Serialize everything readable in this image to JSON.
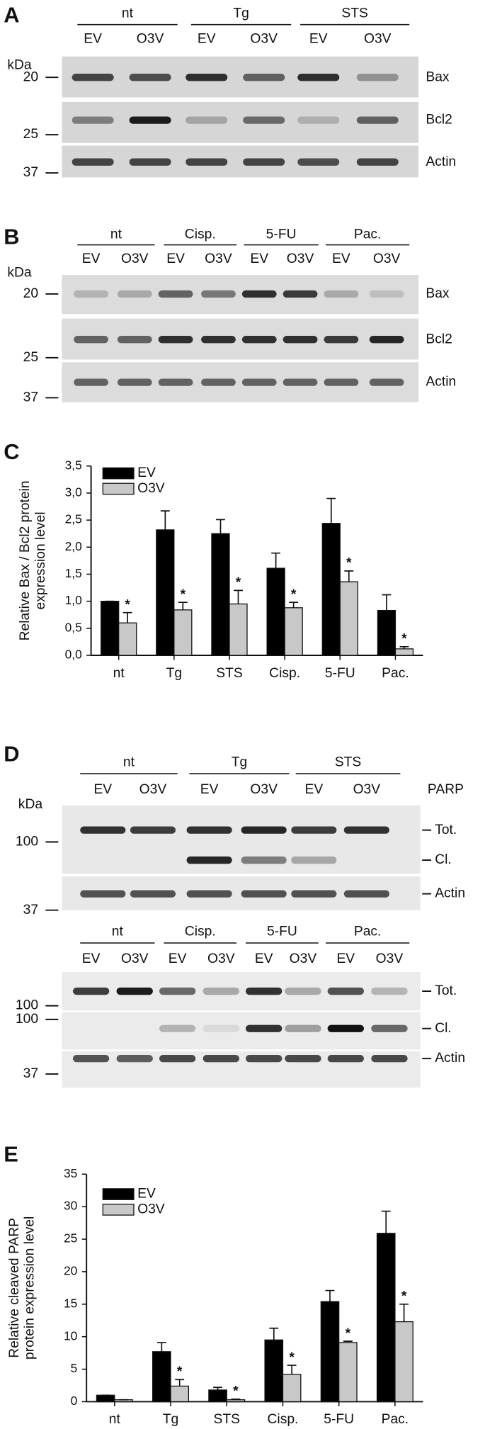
{
  "blots": [
    {
      "panel": "A",
      "groups": [
        {
          "label": "nt",
          "lanes": [
            "EV",
            "O3V"
          ]
        },
        {
          "label": "Tg",
          "lanes": [
            "EV",
            "O3V"
          ]
        },
        {
          "label": "STS",
          "lanes": [
            "EV",
            "O3V"
          ]
        }
      ],
      "markers_label": "kDa",
      "markers": [
        20,
        25,
        37
      ],
      "proteins": [
        "Bax",
        "Bcl2",
        "Actin"
      ]
    },
    {
      "panel": "B",
      "groups": [
        {
          "label": "nt",
          "lanes": [
            "EV",
            "O3V"
          ]
        },
        {
          "label": "Cisp.",
          "lanes": [
            "EV",
            "O3V"
          ]
        },
        {
          "label": "5-FU",
          "lanes": [
            "EV",
            "O3V"
          ]
        },
        {
          "label": "Pac.",
          "lanes": [
            "EV",
            "O3V"
          ]
        }
      ],
      "markers_label": "kDa",
      "markers": [
        20,
        25,
        37
      ],
      "proteins": [
        "Bax",
        "Bcl2",
        "Actin"
      ]
    },
    {
      "panel": "D",
      "top_label": "PARP",
      "groups": [
        {
          "label": "nt",
          "lanes": [
            "EV",
            "O3V"
          ]
        },
        {
          "label": "Tg",
          "lanes": [
            "EV",
            "O3V"
          ]
        },
        {
          "label": "STS",
          "lanes": [
            "EV",
            "O3V"
          ]
        }
      ],
      "markers_label": "kDa",
      "markers": [
        100,
        37
      ],
      "proteins": [
        "Tot.",
        "Cl.",
        "Actin"
      ]
    },
    {
      "groups": [
        {
          "label": "nt",
          "lanes": [
            "EV",
            "O3V"
          ]
        },
        {
          "label": "Cisp.",
          "lanes": [
            "EV",
            "O3V"
          ]
        },
        {
          "label": "5-FU",
          "lanes": [
            "EV",
            "O3V"
          ]
        },
        {
          "label": "Pac.",
          "lanes": [
            "EV",
            "O3V"
          ]
        }
      ],
      "markers": [
        100,
        100,
        37
      ],
      "proteins": [
        "Tot.",
        "Cl.",
        "Actin"
      ]
    }
  ],
  "chart_data": [
    {
      "type": "bar",
      "panel": "C",
      "ylabel": [
        "Relative Bax / Bcl2 protein",
        "expression level"
      ],
      "categories": [
        "nt",
        "Tg",
        "STS",
        "Cisp.",
        "5-FU",
        "Pac."
      ],
      "series": [
        {
          "name": "EV",
          "color": "#000000",
          "values": [
            1.0,
            2.32,
            2.25,
            1.61,
            2.44,
            0.83
          ],
          "errors": [
            0,
            0.35,
            0.26,
            0.28,
            0.46,
            0.29
          ]
        },
        {
          "name": "O3V",
          "color": "#c8c8c8",
          "values": [
            0.6,
            0.84,
            0.95,
            0.88,
            1.36,
            0.12
          ],
          "errors": [
            0.19,
            0.14,
            0.25,
            0.1,
            0.2,
            0.04
          ],
          "significance": [
            "*",
            "*",
            "*",
            "*",
            "*",
            "*"
          ]
        }
      ],
      "ylim": [
        0,
        3.5
      ],
      "yticks": [
        {
          "value": 0,
          "label": "0,0"
        },
        {
          "value": 0.5,
          "label": "0,5"
        },
        {
          "value": 1,
          "label": "1,0"
        },
        {
          "value": 1.5,
          "label": "1,5"
        },
        {
          "value": 2,
          "label": "2,0"
        },
        {
          "value": 2.5,
          "label": "2,5"
        },
        {
          "value": 3,
          "label": "3,0"
        },
        {
          "value": 3.5,
          "label": "3,5"
        }
      ],
      "legend": "upper left"
    },
    {
      "type": "bar",
      "panel": "E",
      "ylabel": [
        "Relative cleaved PARP",
        "protein expression level"
      ],
      "categories": [
        "nt",
        "Tg",
        "STS",
        "Cisp.",
        "5-FU",
        "Pac."
      ],
      "series": [
        {
          "name": "EV",
          "color": "#000000",
          "values": [
            1.0,
            7.7,
            1.8,
            9.5,
            15.4,
            25.9
          ],
          "errors": [
            0,
            1.4,
            0.4,
            1.8,
            1.7,
            3.4
          ]
        },
        {
          "name": "O3V",
          "color": "#c8c8c8",
          "values": [
            0.3,
            2.4,
            0.3,
            4.2,
            9.1,
            12.3
          ],
          "errors": [
            0,
            1.0,
            0.1,
            1.4,
            0.2,
            2.7
          ],
          "significance": [
            null,
            "*",
            "*",
            "*",
            "*",
            "*"
          ]
        }
      ],
      "ylim": [
        0,
        35
      ],
      "yticks": [
        0,
        5,
        10,
        15,
        20,
        25,
        30,
        35
      ],
      "legend": "upper left"
    }
  ]
}
